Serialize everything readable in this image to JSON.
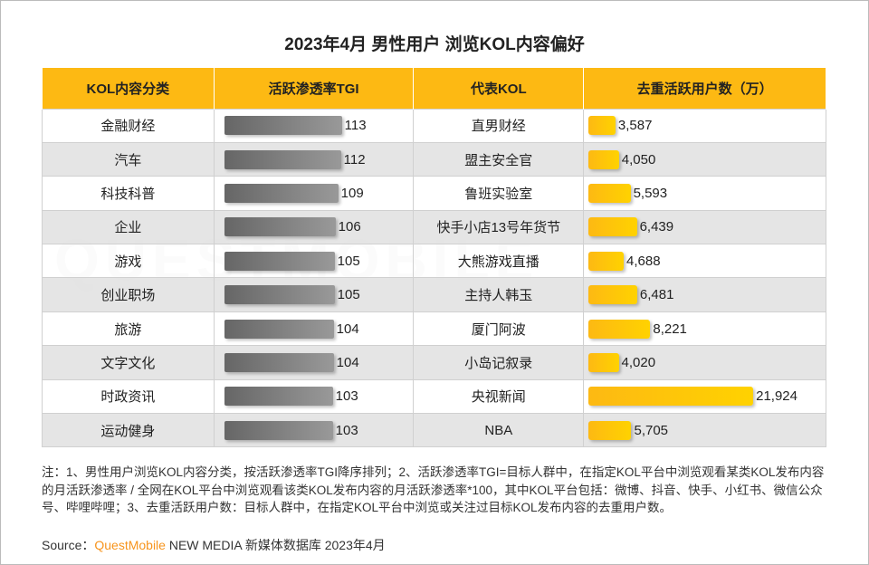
{
  "title": "2023年4月 男性用户 浏览KOL内容偏好",
  "watermark": "QUESTMOBILE",
  "chart_data": {
    "type": "table",
    "title": "2023年4月 男性用户 浏览KOL内容偏好",
    "columns": [
      "KOL内容分类",
      "活跃渗透率TGI",
      "代表KOL",
      "去重活跃用户数（万）"
    ],
    "rows": [
      {
        "category": "金融财经",
        "tgi": 113,
        "kol": "直男财经",
        "users": 3587,
        "users_label": "3,587"
      },
      {
        "category": "汽车",
        "tgi": 112,
        "kol": "盟主安全官",
        "users": 4050,
        "users_label": "4,050"
      },
      {
        "category": "科技科普",
        "tgi": 109,
        "kol": "鲁班实验室",
        "users": 5593,
        "users_label": "5,593"
      },
      {
        "category": "企业",
        "tgi": 106,
        "kol": "快手小店13号年货节",
        "users": 6439,
        "users_label": "6,439"
      },
      {
        "category": "游戏",
        "tgi": 105,
        "kol": "大熊游戏直播",
        "users": 4688,
        "users_label": "4,688"
      },
      {
        "category": "创业职场",
        "tgi": 105,
        "kol": "主持人韩玉",
        "users": 6481,
        "users_label": "6,481"
      },
      {
        "category": "旅游",
        "tgi": 104,
        "kol": "厦门阿波",
        "users": 8221,
        "users_label": "8,221"
      },
      {
        "category": "文字文化",
        "tgi": 104,
        "kol": "小岛记叙录",
        "users": 4020,
        "users_label": "4,020"
      },
      {
        "category": "时政资讯",
        "tgi": 103,
        "kol": "央视新闻",
        "users": 21924,
        "users_label": "21,924"
      },
      {
        "category": "运动健身",
        "tgi": 103,
        "kol": "NBA",
        "users": 5705,
        "users_label": "5,705"
      }
    ],
    "colors": {
      "header": "#fdb913",
      "tgi_bar": "#777777",
      "users_bar": "#fdb913"
    }
  },
  "notes": "注：1、男性用户浏览KOL内容分类，按活跃渗透率TGI降序排列；2、活跃渗透率TGI=目标人群中，在指定KOL平台中浏览观看某类KOL发布内容的月活跃渗透率 / 全网在KOL平台中浏览观看该类KOL发布内容的月活跃渗透率*100，其中KOL平台包括：微博、抖音、快手、小红书、微信公众号、哔哩哔哩；3、去重活跃用户数：目标人群中，在指定KOL平台中浏览或关注过目标KOL发布内容的去重用户数。",
  "source": {
    "label": "Source：",
    "brand": "QuestMobile",
    "rest": " NEW MEDIA 新媒体数据库 2023年4月"
  }
}
